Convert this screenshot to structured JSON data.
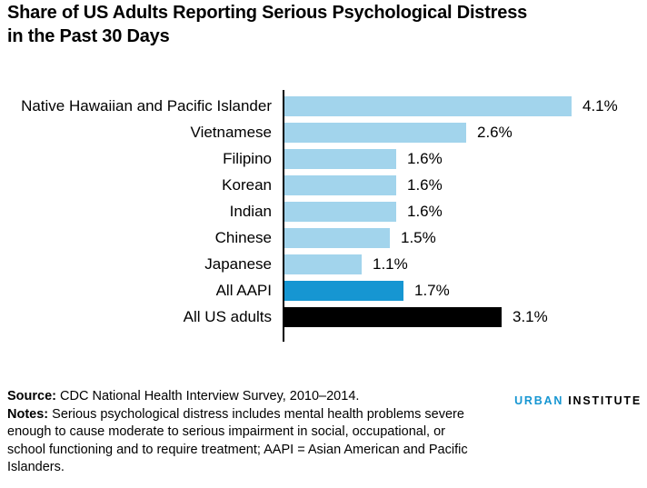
{
  "title": "Share of US Adults Reporting Serious Psychological Distress\nin the Past 30 Days",
  "chart_data": {
    "type": "bar",
    "orientation": "horizontal",
    "title": "Share of US Adults Reporting Serious Psychological Distress in the Past 30 Days",
    "value_suffix": "%",
    "xlim": [
      0,
      4.6
    ],
    "value_axis_visible": false,
    "gridlines": false,
    "categories": [
      "Native Hawaiian and Pacific Islander",
      "Vietnamese",
      "Filipino",
      "Korean",
      "Indian",
      "Chinese",
      "Japanese",
      "All AAPI",
      "All US adults"
    ],
    "values": [
      4.1,
      2.6,
      1.6,
      1.6,
      1.6,
      1.5,
      1.1,
      1.7,
      3.1
    ],
    "bars": [
      {
        "category": "Native Hawaiian and Pacific Islander",
        "value": 4.1,
        "label": "4.1%",
        "color": "#a2d4ec"
      },
      {
        "category": "Vietnamese",
        "value": 2.6,
        "label": "2.6%",
        "color": "#a2d4ec"
      },
      {
        "category": "Filipino",
        "value": 1.6,
        "label": "1.6%",
        "color": "#a2d4ec"
      },
      {
        "category": "Korean",
        "value": 1.6,
        "label": "1.6%",
        "color": "#a2d4ec"
      },
      {
        "category": "Indian",
        "value": 1.6,
        "label": "1.6%",
        "color": "#a2d4ec"
      },
      {
        "category": "Chinese",
        "value": 1.5,
        "label": "1.5%",
        "color": "#a2d4ec"
      },
      {
        "category": "Japanese",
        "value": 1.1,
        "label": "1.1%",
        "color": "#a2d4ec"
      },
      {
        "category": "All AAPI",
        "value": 1.7,
        "label": "1.7%",
        "color": "#1696d2"
      },
      {
        "category": "All US adults",
        "value": 3.1,
        "label": "3.1%",
        "color": "#000000"
      }
    ],
    "colors": {
      "default_bar": "#a2d4ec",
      "highlight_bar": "#1696d2",
      "total_bar": "#000000",
      "axis": "#000000",
      "text": "#000000"
    }
  },
  "notes": {
    "source_label": "Source:",
    "source_text": " CDC National Health Interview Survey, 2010–2014.",
    "notes_label": "Notes:",
    "notes_text": " Serious psychological distress includes mental health problems severe enough to cause moderate to serious impairment in social, occupational, or school functioning and to require treatment; AAPI = Asian American and Pacific Islanders."
  },
  "logo": {
    "part1": "URBAN",
    "part2": "INSTITUTE",
    "accent_color": "#1696d2"
  }
}
